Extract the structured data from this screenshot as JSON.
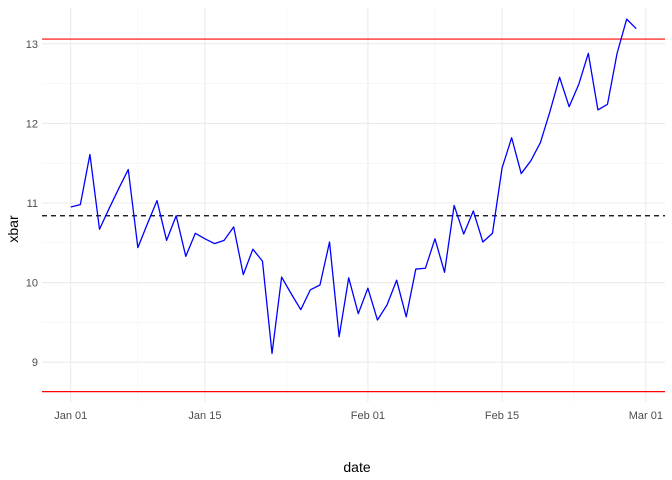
{
  "chart_data": {
    "type": "line",
    "xlabel": "date",
    "ylabel": "xbar",
    "x_tick_labels": [
      "Jan 01",
      "Jan 15",
      "Feb 01",
      "Feb 15",
      "Mar 01"
    ],
    "x_tick_dates": [
      "2000-01-01",
      "2000-01-15",
      "2000-02-01",
      "2000-02-15",
      "2000-03-01"
    ],
    "y_tick_labels": [
      "9",
      "10",
      "11",
      "12",
      "13"
    ],
    "y_ticks": [
      9,
      10,
      11,
      12,
      13
    ],
    "xlim": [
      "1999-12-29",
      "2000-03-03"
    ],
    "ylim": [
      8.5,
      13.45
    ],
    "grid": true,
    "series": [
      {
        "color": "#0000ff",
        "points": [
          [
            "2000-01-01",
            10.95
          ],
          [
            "2000-01-02",
            10.98
          ],
          [
            "2000-01-03",
            11.61
          ],
          [
            "2000-01-04",
            10.67
          ],
          [
            "2000-01-05",
            10.93
          ],
          [
            "2000-01-06",
            11.18
          ],
          [
            "2000-01-07",
            11.42
          ],
          [
            "2000-01-08",
            10.44
          ],
          [
            "2000-01-09",
            10.74
          ],
          [
            "2000-01-10",
            11.03
          ],
          [
            "2000-01-11",
            10.53
          ],
          [
            "2000-01-12",
            10.84
          ],
          [
            "2000-01-13",
            10.33
          ],
          [
            "2000-01-14",
            10.62
          ],
          [
            "2000-01-15",
            10.55
          ],
          [
            "2000-01-16",
            10.49
          ],
          [
            "2000-01-17",
            10.53
          ],
          [
            "2000-01-18",
            10.7
          ],
          [
            "2000-01-19",
            10.1
          ],
          [
            "2000-01-20",
            10.42
          ],
          [
            "2000-01-21",
            10.27
          ],
          [
            "2000-01-22",
            9.11
          ],
          [
            "2000-01-23",
            10.07
          ],
          [
            "2000-01-24",
            9.86
          ],
          [
            "2000-01-25",
            9.66
          ],
          [
            "2000-01-26",
            9.91
          ],
          [
            "2000-01-27",
            9.97
          ],
          [
            "2000-01-28",
            10.51
          ],
          [
            "2000-01-29",
            9.32
          ],
          [
            "2000-01-30",
            10.06
          ],
          [
            "2000-01-31",
            9.61
          ],
          [
            "2000-02-01",
            9.93
          ],
          [
            "2000-02-02",
            9.53
          ],
          [
            "2000-02-03",
            9.72
          ],
          [
            "2000-02-04",
            10.03
          ],
          [
            "2000-02-05",
            9.57
          ],
          [
            "2000-02-06",
            10.17
          ],
          [
            "2000-02-07",
            10.18
          ],
          [
            "2000-02-08",
            10.55
          ],
          [
            "2000-02-09",
            10.13
          ],
          [
            "2000-02-10",
            10.97
          ],
          [
            "2000-02-11",
            10.61
          ],
          [
            "2000-02-12",
            10.9
          ],
          [
            "2000-02-13",
            10.51
          ],
          [
            "2000-02-14",
            10.62
          ],
          [
            "2000-02-15",
            11.44
          ],
          [
            "2000-02-16",
            11.82
          ],
          [
            "2000-02-17",
            11.37
          ],
          [
            "2000-02-18",
            11.53
          ],
          [
            "2000-02-19",
            11.76
          ],
          [
            "2000-02-20",
            12.15
          ],
          [
            "2000-02-21",
            12.58
          ],
          [
            "2000-02-22",
            12.21
          ],
          [
            "2000-02-23",
            12.49
          ],
          [
            "2000-02-24",
            12.88
          ],
          [
            "2000-02-25",
            12.17
          ],
          [
            "2000-02-26",
            12.24
          ],
          [
            "2000-02-27",
            12.88
          ],
          [
            "2000-02-28",
            13.31
          ],
          [
            "2000-02-29",
            13.19
          ]
        ]
      }
    ],
    "reference_lines": [
      {
        "y": 13.06,
        "color": "#ff0000",
        "style": "solid"
      },
      {
        "y": 10.84,
        "color": "#000000",
        "style": "dashed"
      },
      {
        "y": 8.63,
        "color": "#ff0000",
        "style": "solid"
      }
    ]
  }
}
